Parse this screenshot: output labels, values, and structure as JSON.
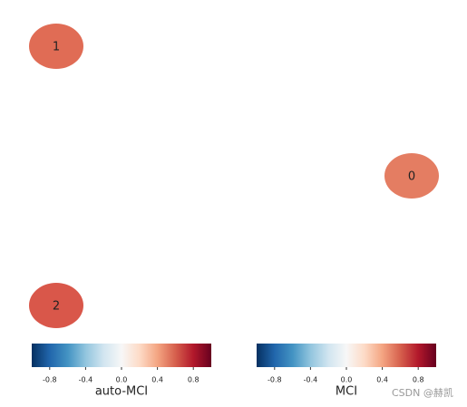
{
  "nodes": [
    {
      "label": "1",
      "color": "#e06c55"
    },
    {
      "label": "0",
      "color": "#e47d62"
    },
    {
      "label": "2",
      "color": "#d9574a"
    }
  ],
  "colorbars": [
    {
      "label": "auto-MCI",
      "lim": [
        -1,
        1
      ],
      "ticks": [
        -0.8,
        -0.4,
        {
          "value": 0,
          "label": "0.0"
        },
        0.4,
        0.8
      ]
    },
    {
      "label": "MCI",
      "lim": [
        -1,
        1
      ],
      "ticks": [
        -0.8,
        -0.4,
        {
          "value": 0,
          "label": "0.0"
        },
        0.4,
        0.8
      ]
    }
  ],
  "watermark": "CSDN @赫凯"
}
